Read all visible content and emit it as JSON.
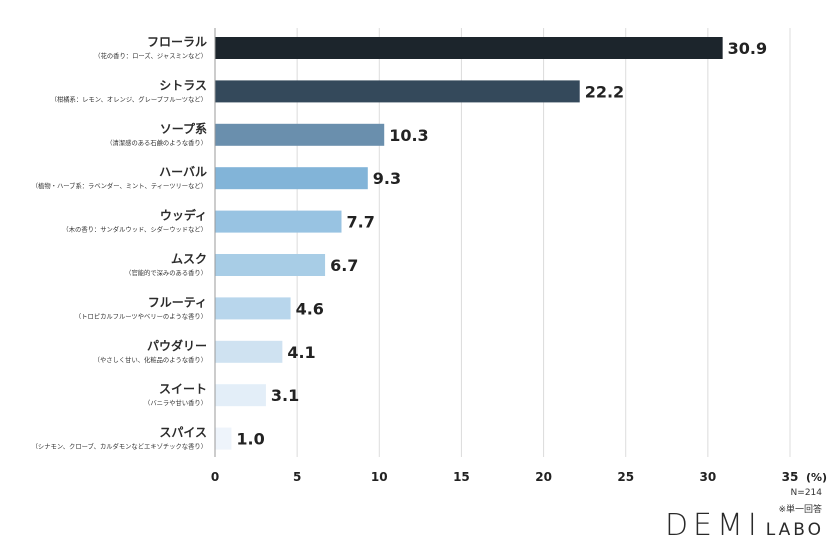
{
  "chart_data": {
    "type": "bar",
    "orientation": "horizontal",
    "categories": [
      {
        "label": "フローラル",
        "sub": "（花の香り：ローズ、ジャスミンなど）"
      },
      {
        "label": "シトラス",
        "sub": "（柑橘系：レモン、オレンジ、グレープフルーツなど）"
      },
      {
        "label": "ソープ系",
        "sub": "（清潔感のある石鹸のような香り）"
      },
      {
        "label": "ハーバル",
        "sub": "（植物・ハーブ系：ラベンダー、ミント、ティーツリーなど）"
      },
      {
        "label": "ウッディ",
        "sub": "（木の香り：サンダルウッド、シダーウッドなど）"
      },
      {
        "label": "ムスク",
        "sub": "（官能的で深みのある香り）"
      },
      {
        "label": "フルーティ",
        "sub": "（トロピカルフルーツやベリーのような香り）"
      },
      {
        "label": "パウダリー",
        "sub": "（やさしく甘い、化粧品のような香り）"
      },
      {
        "label": "スイート",
        "sub": "（バニラや甘い香り）"
      },
      {
        "label": "スパイス",
        "sub": "（シナモン、クローブ、カルダモンなどエキゾチックな香り）"
      }
    ],
    "values": [
      30.9,
      22.2,
      10.3,
      9.3,
      7.7,
      6.7,
      4.6,
      4.1,
      3.1,
      1.0
    ],
    "value_labels": [
      "30.9",
      "22.2",
      "10.3",
      "9.3",
      "7.7",
      "6.7",
      "4.6",
      "4.1",
      "3.1",
      "1.0"
    ],
    "colors": [
      "#1c252c",
      "#34495b",
      "#6a8fad",
      "#82b4d8",
      "#98c3e2",
      "#a8cde6",
      "#b8d6ec",
      "#cfe2f1",
      "#e3eef8",
      "#eef4fb"
    ],
    "xlim": [
      0,
      35
    ],
    "xticks": [
      "0",
      "5",
      "10",
      "15",
      "20",
      "25",
      "30",
      "35"
    ],
    "unit": "(%)",
    "grid": true
  },
  "notes": {
    "n": "N=214",
    "answer_type": "※単一回答"
  },
  "brand": {
    "main": "DEMI",
    "sub": "LABO"
  }
}
